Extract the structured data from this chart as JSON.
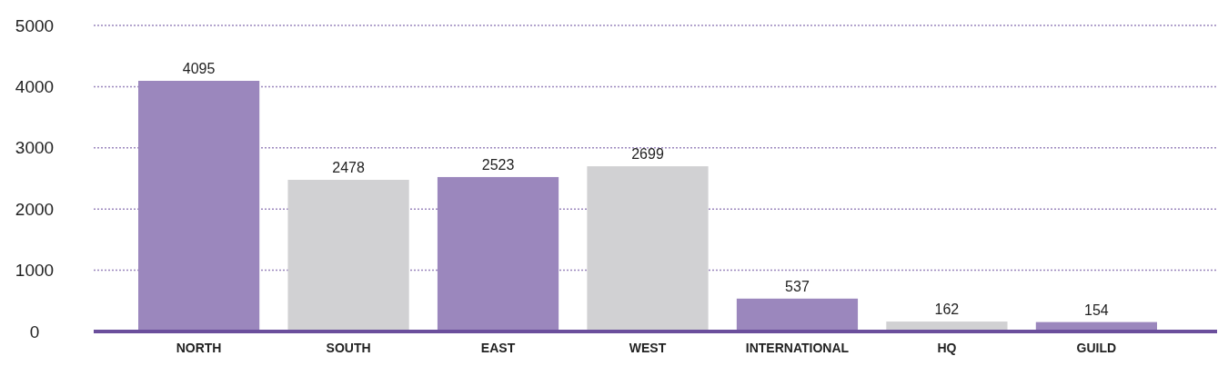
{
  "chart_data": {
    "type": "bar",
    "categories": [
      "NORTH",
      "SOUTH",
      "EAST",
      "WEST",
      "INTERNATIONAL",
      "HQ",
      "GUILD"
    ],
    "values": [
      4095,
      2478,
      2523,
      2699,
      537,
      162,
      154
    ],
    "colors": [
      "#9b87bd",
      "#d1d1d3",
      "#9b87bd",
      "#d1d1d3",
      "#9b87bd",
      "#d1d1d3",
      "#9b87bd"
    ],
    "ylim": [
      0,
      5000
    ],
    "yticks": [
      0,
      1000,
      2000,
      3000,
      4000,
      5000
    ],
    "grid": "y",
    "data_labels": true
  }
}
